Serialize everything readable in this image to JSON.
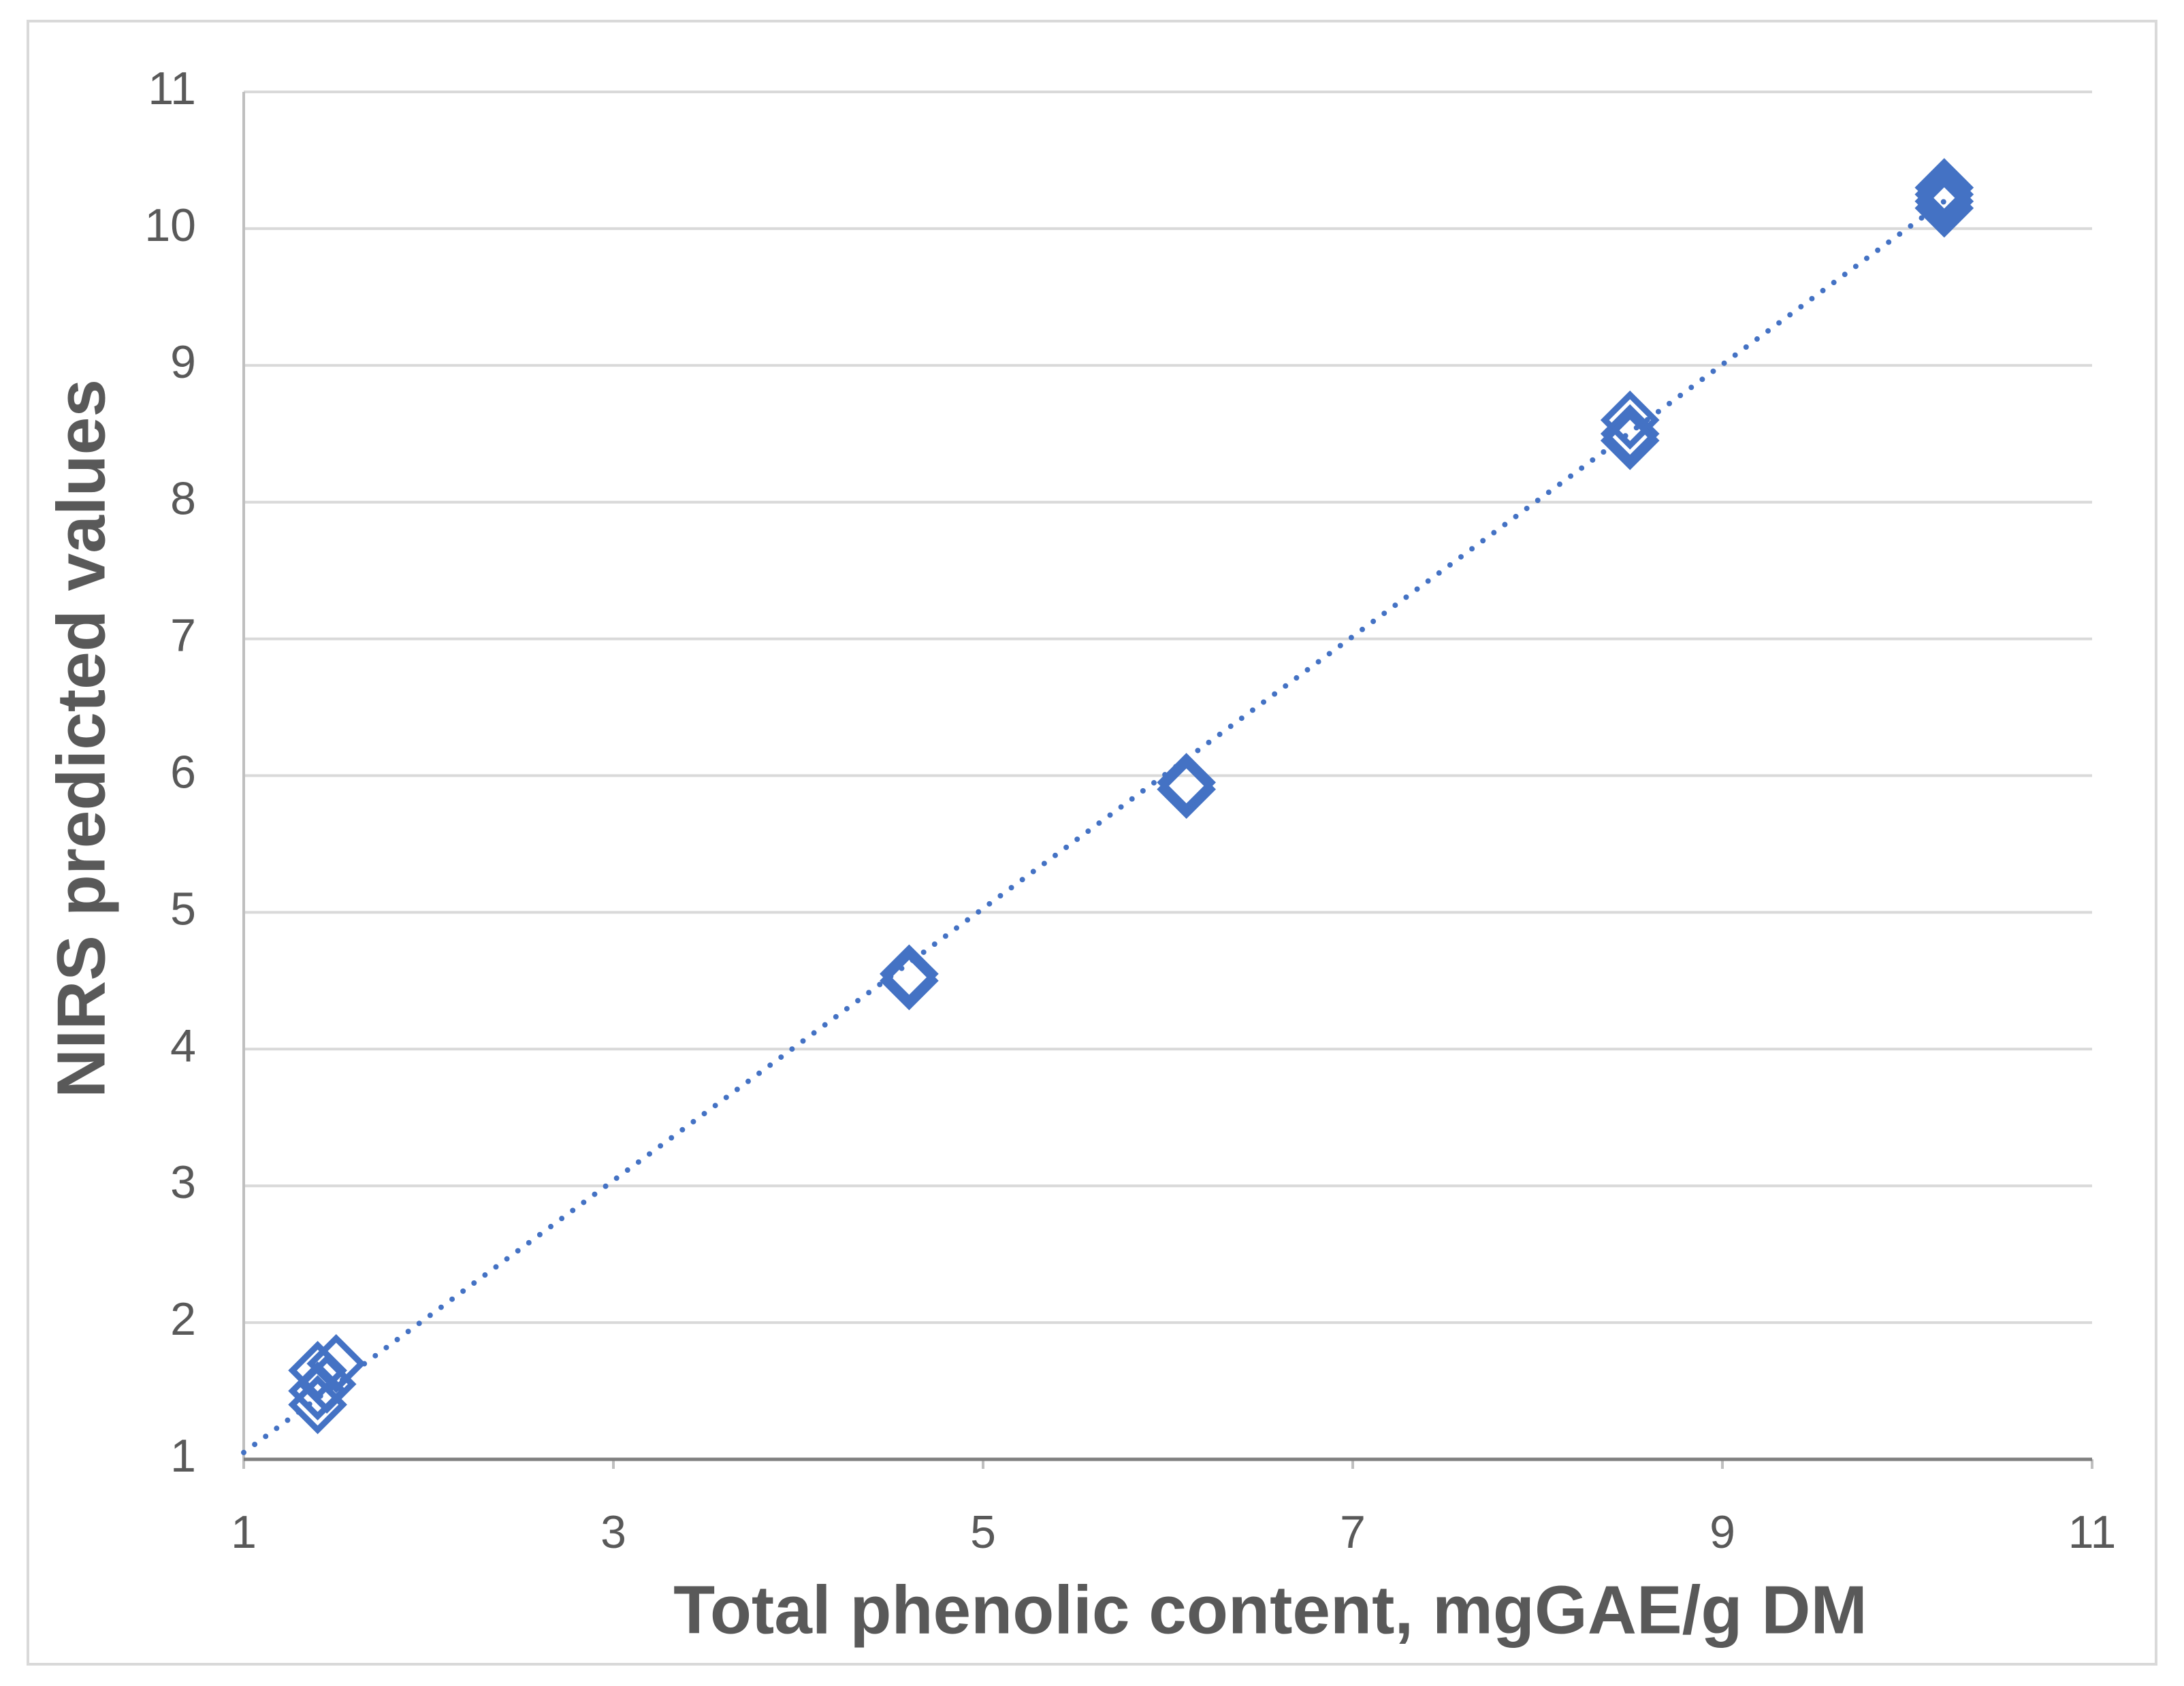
{
  "chart_data": {
    "type": "scatter",
    "x_label": "Total phenolic content, mgGAE/g DM",
    "y_label": "NIRS predicted values",
    "series": [
      {
        "color": "#4472c4",
        "x": [
          1.4,
          1.5,
          1.4,
          1.4,
          1.45,
          4.6,
          4.6,
          6.1,
          6.1,
          8.5,
          8.5,
          8.5,
          10.2,
          10.2,
          10.2,
          10.2
        ],
        "values": [
          1.65,
          1.7,
          1.5,
          1.4,
          1.55,
          4.55,
          4.5,
          5.95,
          5.9,
          8.6,
          8.5,
          8.45,
          10.3,
          10.2,
          10.15,
          10.25
        ]
      }
    ],
    "trendline": {
      "x": [
        1,
        10.2
      ],
      "values": [
        1.05,
        10.2
      ],
      "color": "#4472c4"
    },
    "xlim": [
      1,
      11
    ],
    "xticks": [
      1,
      3,
      5,
      7,
      9,
      11
    ],
    "ylim": [
      1,
      11
    ],
    "yticks": [
      1,
      2,
      3,
      4,
      5,
      6,
      7,
      8,
      9,
      10,
      11
    ],
    "grid": true
  }
}
